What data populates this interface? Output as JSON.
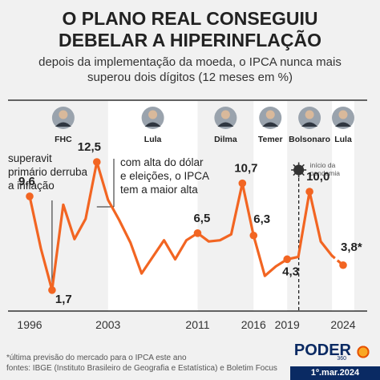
{
  "title_line1": "O PLANO REAL CONSEGUIU",
  "title_line2": "DEBELAR A HIPERINFLAÇÃO",
  "subtitle_line1": "depois da implementação da moeda, o IPCA nunca mais",
  "subtitle_line2": "superou dois dígitos (12 meses em %)",
  "colors": {
    "line": "#f26522",
    "band": "#ffffff",
    "background": "#f1f1f1",
    "brand": "#0a2a63"
  },
  "presidents": [
    {
      "name": "FHC",
      "start": 1995,
      "end": 2003
    },
    {
      "name": "Lula",
      "start": 2003,
      "end": 2011
    },
    {
      "name": "Dilma",
      "start": 2011,
      "end": 2016
    },
    {
      "name": "Temer",
      "start": 2016,
      "end": 2019
    },
    {
      "name": "Bolsonaro",
      "start": 2019,
      "end": 2023
    },
    {
      "name": "Lula",
      "start": 2023,
      "end": 2025
    }
  ],
  "annotations": {
    "superavit": [
      "superavit",
      "primário derruba",
      "a inflação"
    ],
    "eleicoes": [
      "com alta do dólar",
      "e eleições, o IPCA",
      "tem a maior alta"
    ],
    "pandemia": [
      "início da",
      "pandemia"
    ]
  },
  "chart_data": {
    "type": "line",
    "x": [
      1996,
      1997,
      1998,
      1999,
      2000,
      2001,
      2002,
      2003,
      2004,
      2005,
      2006,
      2007,
      2008,
      2009,
      2010,
      2011,
      2012,
      2013,
      2014,
      2015,
      2016,
      2017,
      2018,
      2019,
      2020,
      2021,
      2022,
      2023,
      2024
    ],
    "values": [
      9.6,
      5.2,
      1.7,
      8.9,
      6.0,
      7.7,
      12.5,
      9.3,
      7.6,
      5.7,
      3.1,
      4.5,
      5.9,
      4.3,
      5.9,
      6.5,
      5.8,
      5.9,
      6.4,
      10.7,
      6.3,
      2.9,
      3.7,
      4.3,
      4.5,
      10.0,
      5.8,
      4.6,
      3.8
    ],
    "value_labels": [
      {
        "x": 1996,
        "text": "9,6"
      },
      {
        "x": 1998,
        "text": "1,7"
      },
      {
        "x": 2002,
        "text": "12,5"
      },
      {
        "x": 2011,
        "text": "6,5"
      },
      {
        "x": 2015,
        "text": "10,7"
      },
      {
        "x": 2016,
        "text": "6,3"
      },
      {
        "x": 2019,
        "text": "4,3"
      },
      {
        "x": 2021,
        "text": "10,0"
      },
      {
        "x": 2024,
        "text": "3,8*"
      }
    ],
    "x_ticks": [
      1996,
      2003,
      2011,
      2016,
      2019,
      2024
    ],
    "dashed_segment_from": 2023,
    "pandemic_year": 2020,
    "ylim": [
      0,
      14
    ],
    "xlim": [
      1995,
      2025
    ]
  },
  "footnote": "*última previsão do mercado para o IPCA este ano",
  "sources": "fontes: IBGE (Instituto Brasileiro de Geografia e Estatística) e Boletim Focus",
  "brand": "PODER",
  "brand_sub": "360",
  "date": "1º.mar.2024"
}
